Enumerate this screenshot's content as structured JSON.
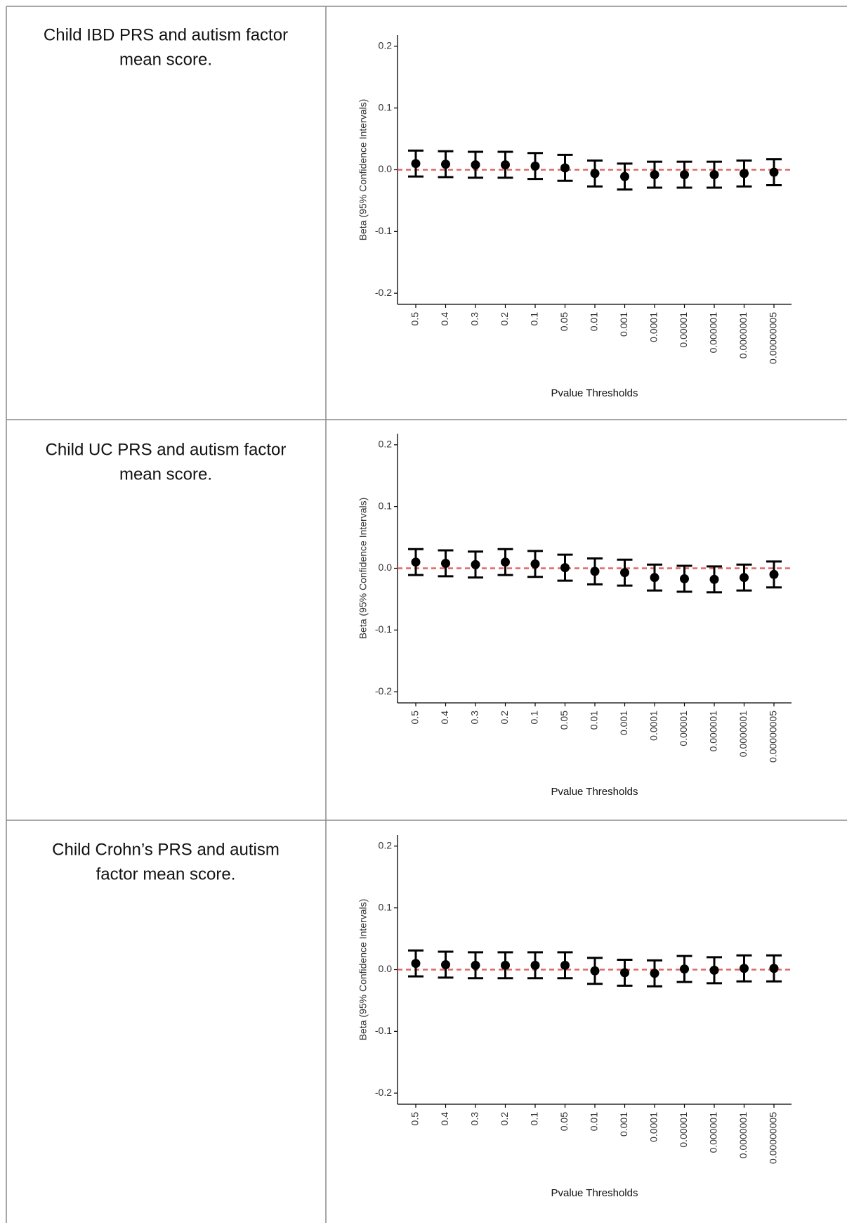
{
  "row_labels": [
    [
      "Child IBD PRS and autism factor",
      "mean score."
    ],
    [
      "Child UC PRS and autism factor",
      "mean score."
    ],
    [
      "Child Crohn’s PRS and autism",
      "factor mean score."
    ]
  ],
  "chart_data": [
    {
      "type": "errorbar",
      "x_label": "Pvalue Thresholds",
      "y_label": "Beta (95% Confidence Intervals)",
      "categories": [
        "0.5",
        "0.4",
        "0.3",
        "0.2",
        "0.1",
        "0.05",
        "0.01",
        "0.001",
        "0.0001",
        "0.00001",
        "0.000001",
        "0.0000001",
        "0.00000005"
      ],
      "values": [
        0.01,
        0.009,
        0.008,
        0.008,
        0.006,
        0.003,
        -0.006,
        -0.011,
        -0.008,
        -0.008,
        -0.008,
        -0.006,
        -0.004
      ],
      "errors": [
        0.021,
        0.021,
        0.021,
        0.021,
        0.021,
        0.021,
        0.021,
        0.021,
        0.021,
        0.021,
        0.021,
        0.021,
        0.021
      ],
      "color": "#000000",
      "hline": 0,
      "hline_color": "#e06666",
      "ylim": [
        -0.218,
        0.218
      ],
      "yticks": [
        0.2,
        0.1,
        {
          "value": 0,
          "label": "0.0"
        },
        -0.1,
        -0.2
      ]
    },
    {
      "type": "errorbar",
      "x_label": "Pvalue Thresholds",
      "y_label": "Beta (95% Confidence Intervals)",
      "categories": [
        "0.5",
        "0.4",
        "0.3",
        "0.2",
        "0.1",
        "0.05",
        "0.01",
        "0.001",
        "0.0001",
        "0.00001",
        "0.000001",
        "0.0000001",
        "0.00000005"
      ],
      "values": [
        0.01,
        0.008,
        0.006,
        0.01,
        0.007,
        0.001,
        -0.005,
        -0.007,
        -0.015,
        -0.017,
        -0.018,
        -0.015,
        -0.01
      ],
      "errors": [
        0.021,
        0.021,
        0.021,
        0.021,
        0.021,
        0.021,
        0.021,
        0.021,
        0.021,
        0.021,
        0.021,
        0.021,
        0.021
      ],
      "color": "#000000",
      "hline": 0,
      "hline_color": "#e06666",
      "ylim": [
        -0.218,
        0.218
      ],
      "yticks": [
        0.2,
        0.1,
        {
          "value": 0,
          "label": "0.0"
        },
        -0.1,
        -0.2
      ]
    },
    {
      "type": "errorbar",
      "x_label": "Pvalue Thresholds",
      "y_label": "Beta (95% Confidence Intervals)",
      "categories": [
        "0.5",
        "0.4",
        "0.3",
        "0.2",
        "0.1",
        "0.05",
        "0.01",
        "0.001",
        "0.0001",
        "0.00001",
        "0.000001",
        "0.0000001",
        "0.00000005"
      ],
      "values": [
        0.01,
        0.008,
        0.007,
        0.007,
        0.007,
        0.007,
        -0.002,
        -0.005,
        -0.006,
        0.001,
        -0.001,
        0.002,
        0.002
      ],
      "errors": [
        0.021,
        0.021,
        0.021,
        0.021,
        0.021,
        0.021,
        0.021,
        0.021,
        0.021,
        0.021,
        0.021,
        0.021,
        0.021
      ],
      "color": "#000000",
      "hline": 0,
      "hline_color": "#e06666",
      "ylim": [
        -0.218,
        0.218
      ],
      "yticks": [
        0.2,
        0.1,
        {
          "value": 0,
          "label": "0.0"
        },
        -0.1,
        -0.2
      ]
    }
  ]
}
